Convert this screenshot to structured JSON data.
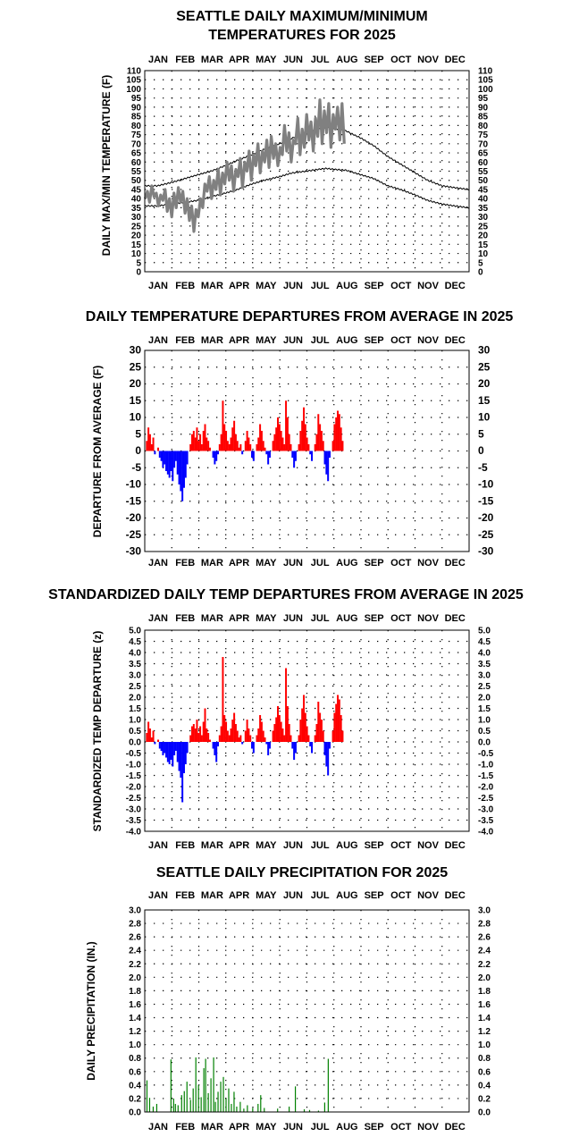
{
  "chart_data": [
    {
      "type": "line",
      "title": [
        "SEATTLE DAILY MAXIMUM/MINIMUM",
        "TEMPERATURES FOR 2025"
      ],
      "ylabel": "DAILY MAX/MIN TEMPERATURE (F)",
      "months": [
        "JAN",
        "FEB",
        "MAR",
        "APR",
        "MAY",
        "JUN",
        "JUL",
        "AUG",
        "SEP",
        "OCT",
        "NOV",
        "DEC"
      ],
      "ylim": [
        0,
        110
      ],
      "ytick_step": 5,
      "grid": true,
      "series": [
        {
          "role": "normal_max",
          "color": "#000000",
          "x": [
            1,
            15,
            32,
            46,
            60,
            75,
            91,
            105,
            121,
            135,
            152,
            166,
            182,
            196,
            205,
            213,
            227,
            244,
            258,
            274,
            288,
            305,
            319,
            335,
            349,
            365
          ],
          "values": [
            47,
            47,
            49,
            51,
            53,
            55,
            58,
            61,
            64,
            67,
            70,
            73,
            76,
            78,
            79,
            78.5,
            77,
            73,
            69,
            63,
            59,
            54,
            50,
            47,
            46,
            45
          ]
        },
        {
          "role": "normal_min",
          "color": "#000000",
          "x": [
            1,
            15,
            32,
            46,
            60,
            75,
            91,
            105,
            121,
            135,
            152,
            166,
            182,
            196,
            205,
            213,
            227,
            244,
            258,
            274,
            288,
            305,
            319,
            335,
            349,
            365
          ],
          "values": [
            36,
            36,
            37,
            38,
            39,
            41,
            43,
            45,
            48,
            50,
            52,
            54,
            55,
            56,
            56.5,
            56,
            55.5,
            53,
            51,
            47,
            45,
            42,
            39,
            37,
            36,
            35
          ]
        },
        {
          "role": "observed_band",
          "color": "#808080",
          "x_range": [
            1,
            225
          ],
          "values": [
            40,
            44,
            38,
            47,
            41,
            43,
            36,
            42,
            39,
            45,
            33,
            40,
            30,
            43,
            35,
            46,
            38,
            44,
            32,
            40,
            28,
            36,
            22,
            34,
            30,
            40,
            35,
            48,
            44,
            52,
            40,
            50,
            45,
            56,
            42,
            54,
            48,
            60,
            50,
            58,
            44,
            56,
            52,
            62,
            46,
            60,
            55,
            66,
            50,
            64,
            58,
            70,
            54,
            66,
            60,
            72,
            57,
            74,
            62,
            70,
            58,
            68,
            64,
            80,
            66,
            76,
            60,
            72,
            70,
            84,
            64,
            78,
            68,
            86,
            72,
            82,
            66,
            84,
            74,
            94,
            70,
            88,
            76,
            92,
            68,
            86,
            78,
            90,
            72,
            92,
            70
          ]
        }
      ]
    },
    {
      "type": "bar",
      "title": "DAILY TEMPERATURE DEPARTURES FROM AVERAGE IN 2025",
      "ylabel": "DEPARTURE FROM AVERAGE (F)",
      "months": [
        "JAN",
        "FEB",
        "MAR",
        "APR",
        "MAY",
        "JUN",
        "JUL",
        "AUG",
        "SEP",
        "OCT",
        "NOV",
        "DEC"
      ],
      "ylim": [
        -30,
        30
      ],
      "ytick_step": 5,
      "grid": true,
      "colors": {
        "positive": "#ff0000",
        "negative": "#0000ff"
      },
      "x_range": [
        1,
        225
      ],
      "values": [
        0,
        3,
        7,
        5,
        2,
        4,
        -1,
        0,
        1,
        -2,
        -3,
        -5,
        -4,
        -6,
        -7,
        -8,
        -6,
        -9,
        -5,
        -3,
        -7,
        -10,
        -12,
        -15,
        -11,
        -8,
        -4,
        0,
        2,
        5,
        6,
        4,
        7,
        3,
        5,
        2,
        6,
        8,
        4,
        3,
        1,
        0,
        -2,
        -4,
        -3,
        -1,
        2,
        5,
        15,
        8,
        6,
        3,
        2,
        4,
        7,
        9,
        5,
        3,
        1,
        2,
        -1,
        0,
        3,
        6,
        4,
        2,
        -2,
        -3,
        0,
        2,
        4,
        8,
        6,
        3,
        1,
        -1,
        -4,
        -2,
        0,
        3,
        5,
        7,
        10,
        8,
        6,
        4,
        2,
        15,
        10,
        5,
        2,
        -2,
        -5,
        -3,
        0,
        2,
        6,
        9,
        13,
        8,
        4,
        2,
        -1,
        -3,
        0,
        2,
        5,
        11,
        8,
        6,
        3,
        -4,
        -7,
        -9,
        -2,
        0,
        3,
        8,
        10,
        12,
        11,
        7,
        3,
        0
      ]
    },
    {
      "type": "bar",
      "title": "STANDARDIZED DAILY TEMP DEPARTURES FROM AVERAGE IN 2025",
      "ylabel": "STANDARDIZED TEMP DEPARTURE (z)",
      "months": [
        "JAN",
        "FEB",
        "MAR",
        "APR",
        "MAY",
        "JUN",
        "JUL",
        "AUG",
        "SEP",
        "OCT",
        "NOV",
        "DEC"
      ],
      "ylim": [
        -4.0,
        5.0
      ],
      "ytick_step": 0.5,
      "grid": true,
      "colors": {
        "positive": "#ff0000",
        "negative": "#0000ff"
      },
      "x_range": [
        1,
        225
      ],
      "values": [
        0,
        0.4,
        0.9,
        0.6,
        0.2,
        0.5,
        -0.1,
        0,
        0.1,
        -0.3,
        -0.4,
        -0.6,
        -0.5,
        -0.7,
        -0.9,
        -1.0,
        -0.8,
        -1.1,
        -0.6,
        -0.4,
        -0.9,
        -1.3,
        -1.6,
        -2.7,
        -1.4,
        -1.0,
        -0.5,
        0,
        0.3,
        0.7,
        0.8,
        0.6,
        1.0,
        0.4,
        0.7,
        0.3,
        0.9,
        1.5,
        0.6,
        0.4,
        0.1,
        0,
        -0.3,
        -0.6,
        -0.9,
        -0.2,
        0.3,
        0.7,
        3.8,
        1.2,
        0.9,
        0.5,
        0.3,
        0.6,
        1.0,
        1.3,
        0.8,
        0.5,
        0.2,
        0.3,
        -0.1,
        0,
        0.5,
        1.0,
        0.6,
        0.3,
        -0.3,
        -0.5,
        0,
        0.3,
        0.6,
        1.2,
        0.9,
        0.5,
        0.2,
        -0.1,
        -0.6,
        -0.3,
        0,
        0.5,
        0.8,
        1.1,
        1.6,
        1.2,
        0.9,
        0.6,
        0.3,
        3.3,
        1.6,
        0.8,
        0.3,
        -0.3,
        -0.8,
        -0.5,
        0,
        0.3,
        1.0,
        1.5,
        2.1,
        1.3,
        0.7,
        0.3,
        -0.2,
        -0.5,
        0,
        0.3,
        0.8,
        1.8,
        1.3,
        1.0,
        0.5,
        -0.6,
        -1.1,
        -1.5,
        -0.3,
        0,
        0.5,
        1.3,
        1.7,
        2.1,
        1.9,
        1.2,
        0.5,
        0
      ]
    },
    {
      "type": "bar",
      "title": "SEATTLE DAILY PRECIPITATION FOR 2025",
      "ylabel": "DAILY PRECIPITATION (IN.)",
      "months": [
        "JAN",
        "FEB",
        "MAR",
        "APR",
        "MAY",
        "JUN",
        "JUL",
        "AUG",
        "SEP",
        "OCT",
        "NOV",
        "DEC"
      ],
      "ylim": [
        0,
        3.0
      ],
      "ytick_step": 0.2,
      "grid": true,
      "colors": {
        "bar": "#008000"
      },
      "x": [
        3,
        6,
        10,
        14,
        30,
        33,
        35,
        38,
        42,
        45,
        48,
        52,
        55,
        58,
        61,
        64,
        67,
        69,
        72,
        75,
        78,
        80,
        83,
        86,
        89,
        92,
        95,
        98,
        101,
        104,
        108,
        112,
        116,
        122,
        128,
        131,
        135,
        150,
        163,
        170,
        180,
        186,
        196,
        203,
        207
      ],
      "values": [
        0.47,
        0.21,
        0.08,
        0.12,
        0.78,
        0.2,
        0.12,
        0.1,
        0.25,
        0.31,
        0.45,
        0.18,
        0.35,
        0.81,
        0.4,
        0.22,
        0.65,
        0.79,
        0.28,
        0.5,
        0.81,
        0.15,
        0.3,
        0.45,
        0.52,
        0.2,
        0.35,
        0.12,
        0.3,
        0.08,
        0.15,
        0.05,
        0.1,
        0.06,
        0.12,
        0.25,
        0.06,
        0.05,
        0.08,
        0.38,
        0.04,
        0.03,
        0.02,
        0.14,
        0.79
      ]
    }
  ]
}
